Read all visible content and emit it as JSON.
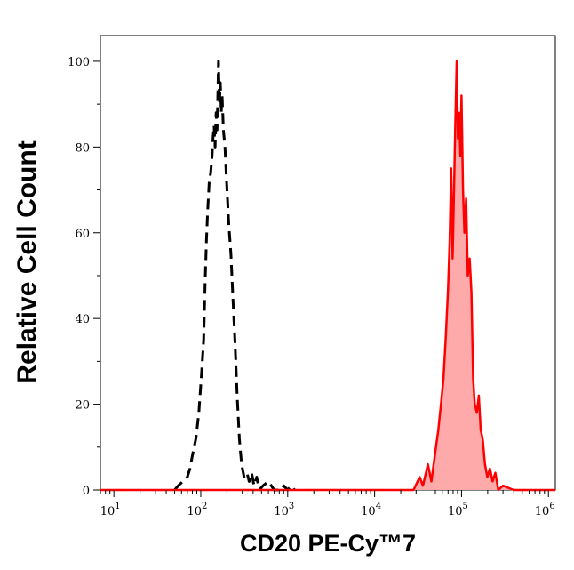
{
  "chart_data": {
    "type": "area",
    "xlabel": "CD20 PE-Cy™7",
    "ylabel": "Relative Cell Count",
    "x_scale": "log",
    "xlim": [
      7,
      1200000
    ],
    "ylim": [
      0,
      106
    ],
    "grid": false,
    "legend": "none",
    "x_ticks": [
      {
        "base": "10",
        "exp": "1"
      },
      {
        "base": "10",
        "exp": "2"
      },
      {
        "base": "10",
        "exp": "3"
      },
      {
        "base": "10",
        "exp": "4"
      },
      {
        "base": "10",
        "exp": "5"
      },
      {
        "base": "10",
        "exp": "6"
      }
    ],
    "y_ticks": [
      "0",
      "20",
      "40",
      "60",
      "80",
      "100"
    ],
    "series": [
      {
        "style": "dashed",
        "color": "#000000",
        "fill": false,
        "points": [
          [
            50,
            0
          ],
          [
            55,
            1
          ],
          [
            62,
            2
          ],
          [
            70,
            3
          ],
          [
            75,
            5
          ],
          [
            80,
            8
          ],
          [
            88,
            12
          ],
          [
            95,
            18
          ],
          [
            102,
            27
          ],
          [
            108,
            35
          ],
          [
            112,
            48
          ],
          [
            116,
            58
          ],
          [
            120,
            65
          ],
          [
            125,
            72
          ],
          [
            130,
            74
          ],
          [
            135,
            78
          ],
          [
            138,
            82
          ],
          [
            142,
            85
          ],
          [
            146,
            80
          ],
          [
            150,
            88
          ],
          [
            154,
            84
          ],
          [
            157,
            92
          ],
          [
            160,
            100
          ],
          [
            164,
            90
          ],
          [
            168,
            95
          ],
          [
            172,
            88
          ],
          [
            176,
            92
          ],
          [
            182,
            84
          ],
          [
            190,
            80
          ],
          [
            198,
            72
          ],
          [
            210,
            62
          ],
          [
            222,
            55
          ],
          [
            235,
            44
          ],
          [
            248,
            34
          ],
          [
            262,
            22
          ],
          [
            278,
            12
          ],
          [
            295,
            6
          ],
          [
            315,
            3
          ],
          [
            340,
            4
          ],
          [
            360,
            2
          ],
          [
            385,
            4
          ],
          [
            410,
            1
          ],
          [
            440,
            3
          ],
          [
            470,
            0
          ],
          [
            520,
            1
          ],
          [
            600,
            2
          ],
          [
            700,
            0
          ],
          [
            850,
            0
          ],
          [
            900,
            1
          ],
          [
            1000,
            0
          ],
          [
            1100,
            1
          ],
          [
            1200,
            0
          ]
        ]
      },
      {
        "style": "solid",
        "color": "#ff0000",
        "fill": true,
        "fill_color": "#ffaaaa",
        "points": [
          [
            7,
            0
          ],
          [
            100,
            0
          ],
          [
            1000,
            0
          ],
          [
            10000,
            0
          ],
          [
            28000,
            0
          ],
          [
            33000,
            3
          ],
          [
            36000,
            1
          ],
          [
            41000,
            6
          ],
          [
            45000,
            2
          ],
          [
            50000,
            9
          ],
          [
            54000,
            14
          ],
          [
            58000,
            20
          ],
          [
            62000,
            26
          ],
          [
            66000,
            36
          ],
          [
            70000,
            47
          ],
          [
            73000,
            58
          ],
          [
            76000,
            75
          ],
          [
            79000,
            54
          ],
          [
            82000,
            70
          ],
          [
            85000,
            86
          ],
          [
            88000,
            100
          ],
          [
            91000,
            82
          ],
          [
            94000,
            88
          ],
          [
            97000,
            78
          ],
          [
            100000,
            92
          ],
          [
            104000,
            70
          ],
          [
            108000,
            60
          ],
          [
            113000,
            68
          ],
          [
            118000,
            50
          ],
          [
            124000,
            54
          ],
          [
            130000,
            46
          ],
          [
            136000,
            26
          ],
          [
            142000,
            20
          ],
          [
            150000,
            18
          ],
          [
            158000,
            22
          ],
          [
            166000,
            14
          ],
          [
            175000,
            12
          ],
          [
            186000,
            6
          ],
          [
            198000,
            3
          ],
          [
            212000,
            5
          ],
          [
            228000,
            2
          ],
          [
            245000,
            4
          ],
          [
            265000,
            0
          ],
          [
            300000,
            1
          ],
          [
            400000,
            0
          ],
          [
            600000,
            0
          ],
          [
            1200000,
            0
          ]
        ]
      }
    ]
  }
}
